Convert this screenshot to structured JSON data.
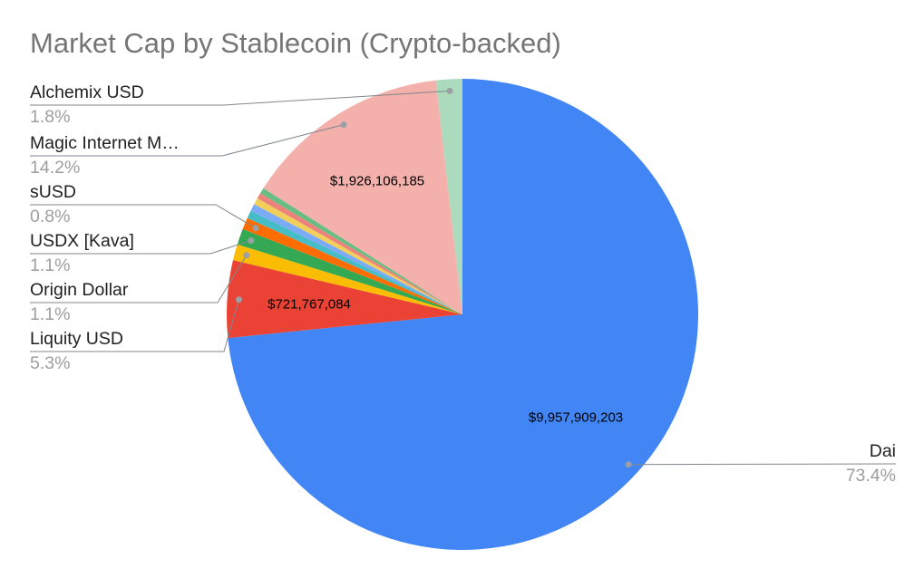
{
  "chart_data": {
    "type": "pie",
    "title": "Market Cap by Stablecoin (Crypto-backed)",
    "direction": "clockwise",
    "start_angle_deg": 0,
    "legend_position": "none",
    "label_style": "callout lines with name and percent",
    "slices": [
      {
        "label": "Dai",
        "pct": 73.4,
        "pct_label": "73.4%",
        "value_label": "$9,957,909,203",
        "color": "#4285F4"
      },
      {
        "label": "Liquity USD",
        "pct": 5.3,
        "pct_label": "5.3%",
        "value_label": "$721,767,084",
        "color": "#EA4335"
      },
      {
        "label": "Origin Dollar",
        "pct": 1.1,
        "pct_label": "1.1%",
        "color": "#FBBC04"
      },
      {
        "label": "USDX [Kava]",
        "pct": 1.1,
        "pct_label": "1.1%",
        "color": "#34A853"
      },
      {
        "label": "sUSD",
        "pct": 0.8,
        "pct_label": "0.8%",
        "color": "#FF6D01"
      },
      {
        "label": "",
        "pct": 0.55,
        "color": "#46BDC6"
      },
      {
        "label": "",
        "pct": 0.5,
        "color": "#7BAAF7"
      },
      {
        "label": "",
        "pct": 0.45,
        "color": "#F2CF5B"
      },
      {
        "label": "",
        "pct": 0.4,
        "color": "#ED827A"
      },
      {
        "label": "",
        "pct": 0.4,
        "color": "#68BD82"
      },
      {
        "label": "Magic Internet M…",
        "pct": 14.2,
        "pct_label": "14.2%",
        "value_label": "$1,926,106,185",
        "color": "#F4B1AC"
      },
      {
        "label": "Alchemix USD",
        "pct": 1.8,
        "pct_label": "1.8%",
        "color": "#ABDBBC"
      }
    ]
  }
}
